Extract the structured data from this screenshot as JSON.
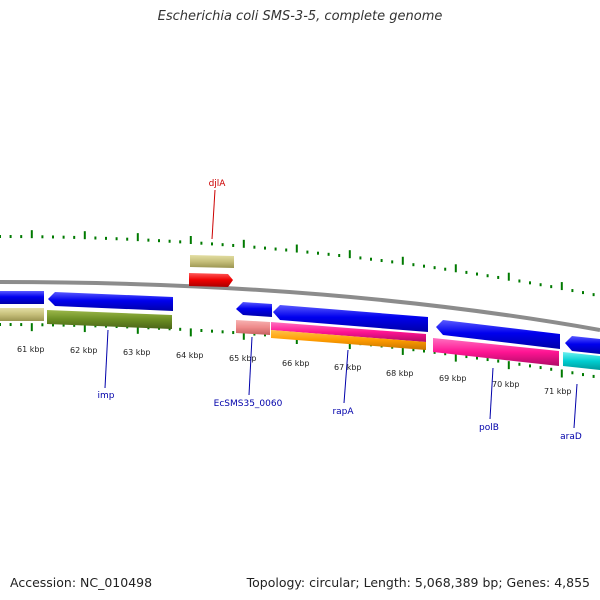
{
  "title": "Escherichia coli SMS-3-5, complete genome",
  "footer": {
    "accession": "Accession: NC_010498",
    "topology": "Topology: circular; Length: 5,068,389 bp; Genes: 4,855"
  },
  "colors": {
    "backbone": "#8c8c8c",
    "tick": "#007a00",
    "label_blue": "#0000aa",
    "label_red": "#cc0000"
  },
  "ticks": [
    "61 kbp",
    "62 kbp",
    "63 kbp",
    "64 kbp",
    "65 kbp",
    "66 kbp",
    "67 kbp",
    "68 kbp",
    "69 kbp",
    "70 kbp",
    "71 kbp"
  ],
  "gene_labels": [
    {
      "text": "djlA",
      "color": "red"
    },
    {
      "text": "imp",
      "color": "blue"
    },
    {
      "text": "EcSMS35_0060",
      "color": "blue"
    },
    {
      "text": "rapA",
      "color": "blue"
    },
    {
      "text": "polB",
      "color": "blue"
    },
    {
      "text": "araD",
      "color": "blue"
    }
  ]
}
